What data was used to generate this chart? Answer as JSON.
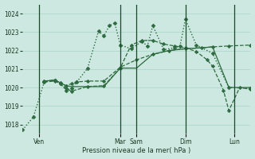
{
  "bg_color": "#cce8e0",
  "grid_color": "#a8d4c8",
  "line_color": "#2d6a3f",
  "marker_color": "#2d6a3f",
  "xlabel": "Pression niveau de la mer( hPa )",
  "ylim": [
    1017.5,
    1024.5
  ],
  "yticks": [
    1018,
    1019,
    1020,
    1021,
    1022,
    1023,
    1024
  ],
  "xlim": [
    0,
    84
  ],
  "vline_positions": [
    6,
    36,
    42,
    60,
    78
  ],
  "xtick_positions": [
    6,
    36,
    42,
    60,
    78
  ],
  "xtick_labels": [
    "Ven",
    "Mar",
    "Sam",
    "Dim",
    "Lun"
  ],
  "series": [
    {
      "x": [
        0,
        4,
        8,
        12,
        14,
        16,
        18,
        20,
        24,
        28,
        30,
        32,
        34,
        36,
        40,
        44,
        46,
        48,
        52,
        56,
        58,
        60,
        64,
        70,
        76,
        84
      ],
      "y": [
        1017.7,
        1018.4,
        1020.3,
        1020.4,
        1020.2,
        1019.85,
        1019.95,
        1020.3,
        1021.05,
        1023.05,
        1022.8,
        1023.35,
        1023.5,
        1022.3,
        1022.1,
        1022.5,
        1022.25,
        1023.35,
        1022.05,
        1022.15,
        1022.25,
        1023.7,
        1022.3,
        1021.85,
        1020.0,
        1019.95
      ],
      "linestyle": ":",
      "linewidth": 1.0,
      "markersize": 2.5
    },
    {
      "x": [
        8,
        12,
        14,
        16,
        18,
        20,
        24,
        30,
        36,
        42,
        48,
        54,
        60,
        66,
        70,
        76,
        84
      ],
      "y": [
        1020.35,
        1020.4,
        1020.25,
        1020.1,
        1020.2,
        1020.3,
        1020.35,
        1020.35,
        1021.1,
        1021.5,
        1021.8,
        1022.0,
        1022.1,
        1022.15,
        1022.2,
        1022.25,
        1022.3
      ],
      "linestyle": "--",
      "linewidth": 0.9,
      "markersize": 2.3
    },
    {
      "x": [
        8,
        12,
        14,
        16,
        18,
        20,
        24,
        30,
        36,
        42,
        48,
        54,
        60,
        66,
        70,
        76,
        84
      ],
      "y": [
        1020.35,
        1020.4,
        1020.25,
        1020.1,
        1020.05,
        1020.05,
        1020.05,
        1020.05,
        1021.05,
        1021.05,
        1021.8,
        1022.0,
        1022.1,
        1022.15,
        1022.2,
        1020.0,
        1020.0
      ],
      "linestyle": "-",
      "linewidth": 0.9,
      "markersize": 0
    },
    {
      "x": [
        8,
        12,
        14,
        16,
        18,
        24,
        30,
        36,
        40,
        44,
        48,
        52,
        56,
        60,
        64,
        68,
        70,
        74,
        76,
        80,
        84
      ],
      "y": [
        1020.3,
        1020.35,
        1020.2,
        1019.95,
        1019.8,
        1020.05,
        1020.1,
        1021.05,
        1022.3,
        1022.55,
        1022.55,
        1022.35,
        1022.25,
        1022.15,
        1021.95,
        1021.5,
        1021.15,
        1019.85,
        1018.75,
        1020.0,
        1019.9
      ],
      "linestyle": "--",
      "linewidth": 0.9,
      "markersize": 2.3
    }
  ]
}
